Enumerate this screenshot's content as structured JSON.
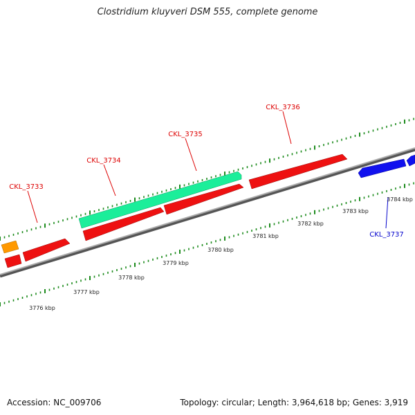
{
  "title": "Clostridium kluyveri DSM 555, complete genome",
  "footer": {
    "accession": "Accession: NC_009706",
    "summary": "Topology: circular; Length: 3,964,618 bp; Genes: 3,919"
  },
  "colors": {
    "backbone": "#8c8c8c",
    "tick": "#1b8a1b",
    "gene_red": "#ee1111",
    "gene_green": "#1bee9a",
    "gene_orange": "#ff9900",
    "gene_blue": "#1111ee",
    "label_red": "#dd0000",
    "label_blue": "#0000cc"
  },
  "scale": {
    "labels": [
      "3776 kbp",
      "3777 kbp",
      "3778 kbp",
      "3779 kbp",
      "3780 kbp",
      "3781 kbp",
      "3782 kbp",
      "3783 kbp",
      "3784 kbp"
    ]
  },
  "gene_labels": [
    {
      "text": "CKL_3733",
      "color": "red"
    },
    {
      "text": "CKL_3734",
      "color": "red"
    },
    {
      "text": "CKL_3735",
      "color": "red"
    },
    {
      "text": "CKL_3736",
      "color": "red"
    },
    {
      "text": "CKL_3737",
      "color": "blue"
    }
  ]
}
